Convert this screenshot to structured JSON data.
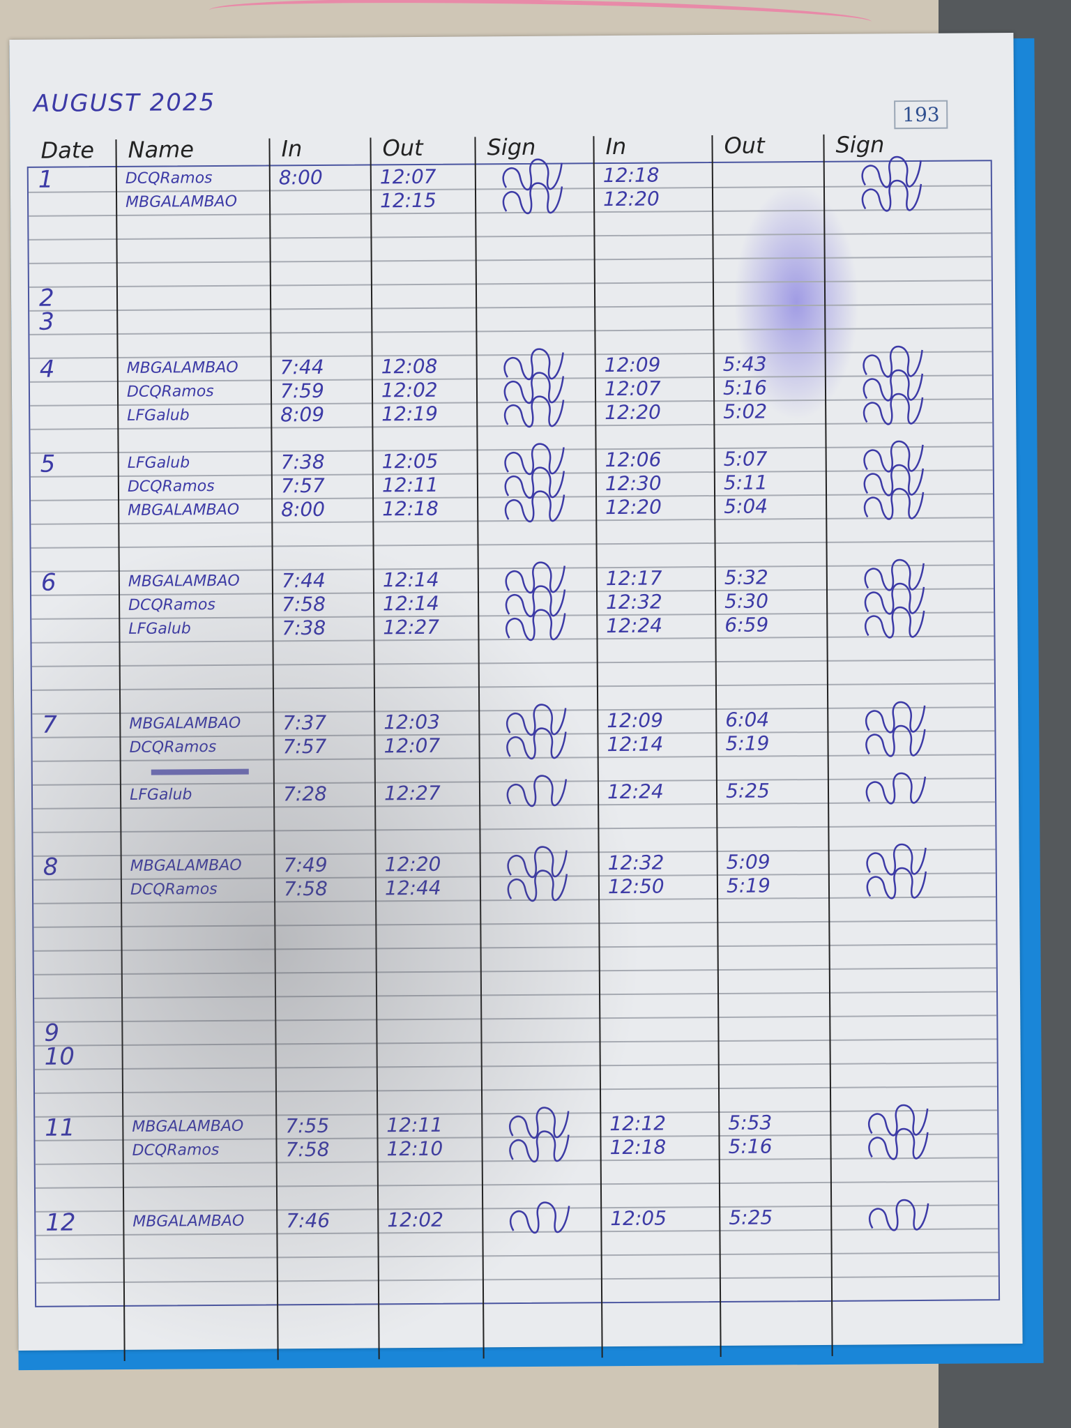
{
  "header": {
    "title": "AUGUST 2025",
    "page_number": "193"
  },
  "columns": [
    "Date",
    "Name",
    "In",
    "Out",
    "Sign",
    "In",
    "Out",
    "Sign"
  ],
  "entries": [
    {
      "date": "1",
      "name": "DCQRamos",
      "in": "8:00",
      "out": "12:07",
      "in2": "12:18",
      "out2": ""
    },
    {
      "date": "",
      "name": "MBGALAMBAO",
      "in": "",
      "out": "12:15",
      "in2": "12:20",
      "out2": ""
    },
    {
      "date": "2",
      "name": "",
      "in": "",
      "out": "",
      "in2": "",
      "out2": ""
    },
    {
      "date": "3",
      "name": "",
      "in": "",
      "out": "",
      "in2": "",
      "out2": ""
    },
    {
      "date": "4",
      "name": "MBGALAMBAO",
      "in": "7:44",
      "out": "12:08",
      "in2": "12:09",
      "out2": "5:43"
    },
    {
      "date": "",
      "name": "DCQRamos",
      "in": "7:59",
      "out": "12:02",
      "in2": "12:07",
      "out2": "5:16"
    },
    {
      "date": "",
      "name": "LFGalub",
      "in": "8:09",
      "out": "12:19",
      "in2": "12:20",
      "out2": "5:02"
    },
    {
      "date": "5",
      "name": "LFGalub",
      "in": "7:38",
      "out": "12:05",
      "in2": "12:06",
      "out2": "5:07"
    },
    {
      "date": "",
      "name": "DCQRamos",
      "in": "7:57",
      "out": "12:11",
      "in2": "12:30",
      "out2": "5:11"
    },
    {
      "date": "",
      "name": "MBGALAMBAO",
      "in": "8:00",
      "out": "12:18",
      "in2": "12:20",
      "out2": "5:04"
    },
    {
      "date": "6",
      "name": "MBGALAMBAO",
      "in": "7:44",
      "out": "12:14",
      "in2": "12:17",
      "out2": "5:32"
    },
    {
      "date": "",
      "name": "DCQRamos",
      "in": "7:58",
      "out": "12:14",
      "in2": "12:32",
      "out2": "5:30"
    },
    {
      "date": "",
      "name": "LFGalub",
      "in": "7:38",
      "out": "12:27",
      "in2": "12:24",
      "out2": "6:59"
    },
    {
      "date": "7",
      "name": "MBGALAMBAO",
      "in": "7:37",
      "out": "12:03",
      "in2": "12:09",
      "out2": "6:04"
    },
    {
      "date": "",
      "name": "DCQRamos",
      "in": "7:57",
      "out": "12:07",
      "in2": "12:14",
      "out2": "5:19"
    },
    {
      "date": "",
      "name": "LFGalub",
      "in": "7:28",
      "out": "12:27",
      "in2": "12:24",
      "out2": "5:25"
    },
    {
      "date": "8",
      "name": "MBGALAMBAO",
      "in": "7:49",
      "out": "12:20",
      "in2": "12:32",
      "out2": "5:09"
    },
    {
      "date": "",
      "name": "DCQRamos",
      "in": "7:58",
      "out": "12:44",
      "in2": "12:50",
      "out2": "5:19"
    },
    {
      "date": "9",
      "name": "",
      "in": "",
      "out": "",
      "in2": "",
      "out2": ""
    },
    {
      "date": "10",
      "name": "",
      "in": "",
      "out": "",
      "in2": "",
      "out2": ""
    },
    {
      "date": "11",
      "name": "MBGALAMBAO",
      "in": "7:55",
      "out": "12:11",
      "in2": "12:12",
      "out2": "5:53"
    },
    {
      "date": "",
      "name": "DCQRamos",
      "in": "7:58",
      "out": "12:10",
      "in2": "12:18",
      "out2": "5:16"
    },
    {
      "date": "12",
      "name": "MBGALAMBAO",
      "in": "7:46",
      "out": "12:02",
      "in2": "12:05",
      "out2": "5:25"
    }
  ],
  "colors": {
    "ink": "#3c3aa6",
    "cover": "#1a86d8",
    "paper": "#e9ebee"
  }
}
